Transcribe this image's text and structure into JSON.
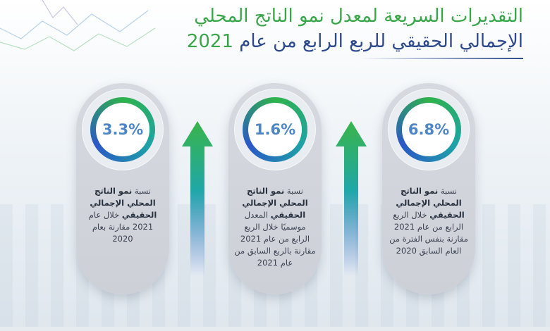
{
  "title": {
    "line1": "التقديرات السريعة لمعدل نمو الناتج المحلي",
    "line2": "الإجمالي الحقيقي للربع الرابع من عام",
    "year": "2021"
  },
  "cards": [
    {
      "value": "3.3%",
      "desc_prefix": "نسبة ",
      "desc_bold": "نمو الناتج المحلي الإجمالي الحقيقي",
      "desc_rest": " خلال عام 2021 مقارنة بعام 2020"
    },
    {
      "value": "1.6%",
      "desc_prefix": "نسبة ",
      "desc_bold": "نمو الناتج المحلي الإجمالي الحقيقي",
      "desc_rest": " المعدل موسميًا خلال الربع الرابع من عام 2021 مقارنة بالربع السابق من عام 2021"
    },
    {
      "value": "6.8%",
      "desc_prefix": "نسبة ",
      "desc_bold": "نمو الناتج المحلي الإجمالي الحقيقي",
      "desc_rest": " خلال الربع الرابع من عام 2021 مقارنة بنفس الفترة من العام السابق 2020"
    }
  ],
  "colors": {
    "green": "#3aa64a",
    "navy": "#2e4a8c",
    "percent": "#4d86c7",
    "card": "#d3d6dc"
  },
  "icons": [
    "up-arrow-icon",
    "up-arrow-icon"
  ]
}
